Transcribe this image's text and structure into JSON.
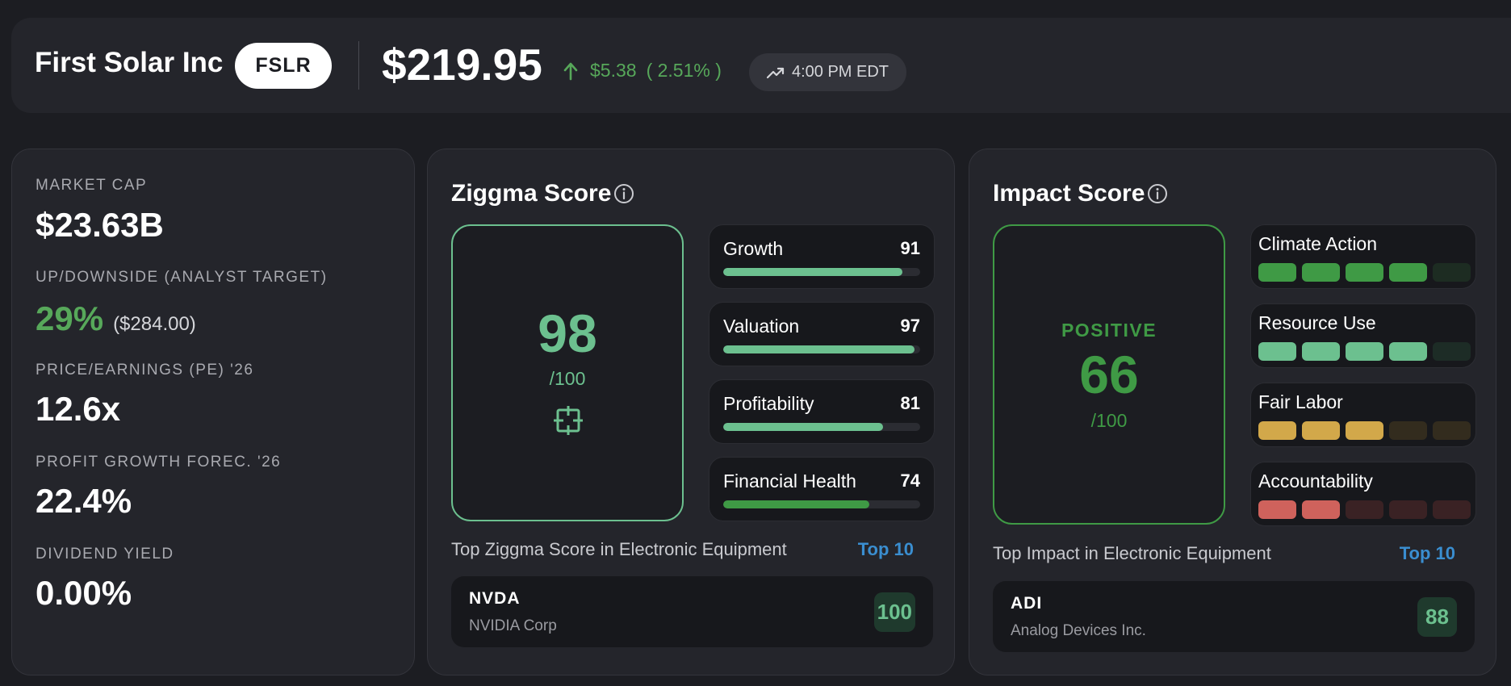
{
  "header": {
    "company_name": "First Solar Inc",
    "ticker": "FSLR",
    "price": "$219.95",
    "change_amount": "$5.38",
    "change_percent": "( 2.51% )",
    "market_time": "4:00 PM EDT",
    "colors": {
      "positive": "#57a85a"
    }
  },
  "metrics": {
    "market_cap": {
      "label": "MARKET CAP",
      "value": "$23.63B"
    },
    "upside": {
      "label": "UP/DOWNSIDE (ANALYST TARGET)",
      "percent": "29%",
      "target": "($284.00)"
    },
    "pe": {
      "label": "PRICE/EARNINGS (PE) '26",
      "value": "12.6x"
    },
    "profit_growth": {
      "label": "PROFIT GROWTH FOREC. '26",
      "value": "22.4%"
    },
    "dividend_yield": {
      "label": "DIVIDEND YIELD",
      "value": "0.00%"
    }
  },
  "ziggma": {
    "title": "Ziggma Score",
    "score": "98",
    "max": "/100",
    "icon": "crosshair-icon",
    "sub_scores": [
      {
        "name": "Growth",
        "value": 91,
        "color": "#6cc08f"
      },
      {
        "name": "Valuation",
        "value": 97,
        "color": "#6cc08f"
      },
      {
        "name": "Profitability",
        "value": 81,
        "color": "#6cc08f"
      },
      {
        "name": "Financial Health",
        "value": 74,
        "color": "#3f9a45"
      }
    ],
    "top_label": "Top Ziggma Score in Electronic Equipment",
    "top_link": "Top 10",
    "leader": {
      "ticker": "NVDA",
      "name": "NVIDIA Corp",
      "score": "100"
    },
    "accent_color": "#6cc08f"
  },
  "impact": {
    "title": "Impact Score",
    "sentiment": "POSITIVE",
    "score": "66",
    "max": "/100",
    "categories": [
      {
        "name": "Climate Action",
        "filled": 4,
        "total": 5,
        "on_color": "#3f9a45",
        "off_color": "#1d2c22"
      },
      {
        "name": "Resource Use",
        "filled": 4,
        "total": 5,
        "on_color": "#6cc08f",
        "off_color": "#1d2c26"
      },
      {
        "name": "Fair Labor",
        "filled": 3,
        "total": 5,
        "on_color": "#d2a84a",
        "off_color": "#332c1e"
      },
      {
        "name": "Accountability",
        "filled": 2,
        "total": 5,
        "on_color": "#cf625c",
        "off_color": "#3a2224"
      }
    ],
    "top_label": "Top Impact in Electronic Equipment",
    "top_link": "Top 10",
    "leader": {
      "ticker": "ADI",
      "name": "Analog Devices Inc.",
      "score": "88"
    },
    "accent_color": "#3f9a45"
  }
}
